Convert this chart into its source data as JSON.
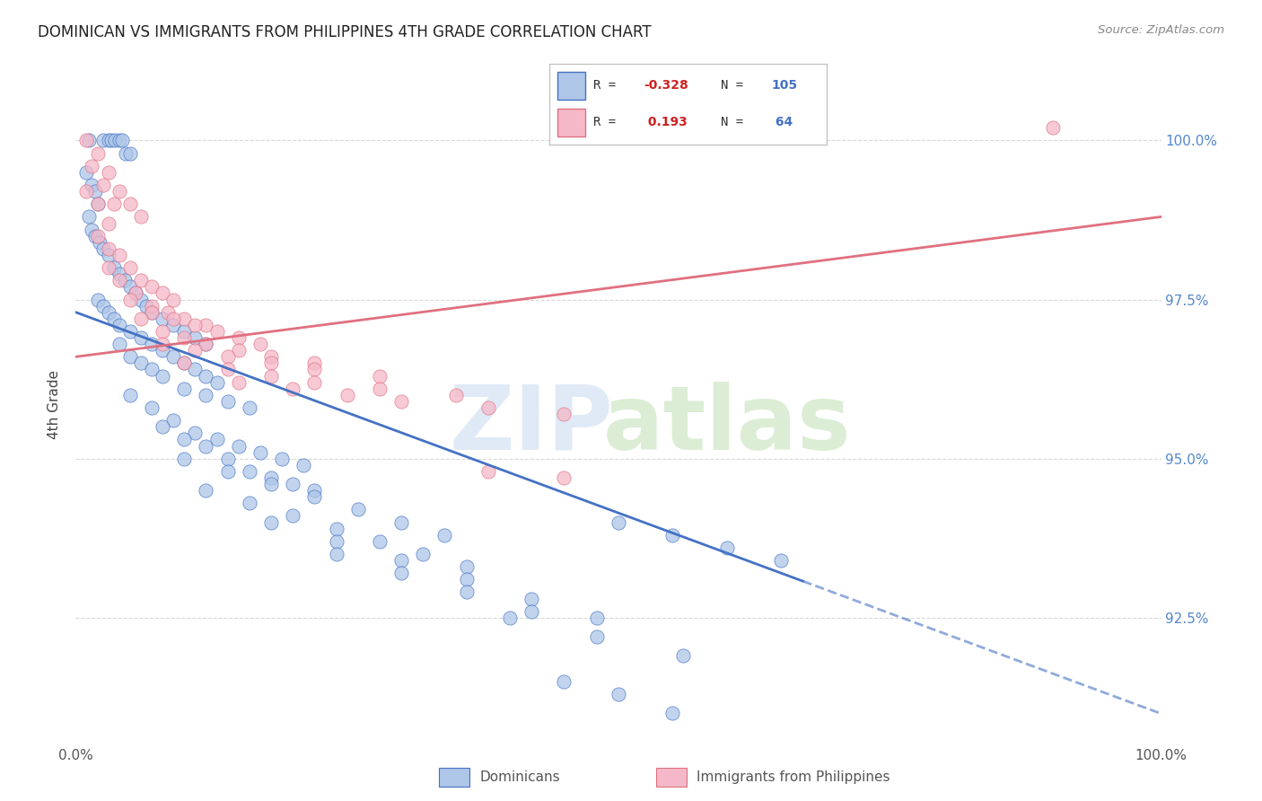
{
  "title": "DOMINICAN VS IMMIGRANTS FROM PHILIPPINES 4TH GRADE CORRELATION CHART",
  "source": "Source: ZipAtlas.com",
  "ylabel": "4th Grade",
  "ylabel_ticks": [
    "92.5%",
    "95.0%",
    "97.5%",
    "100.0%"
  ],
  "ylabel_tick_vals": [
    92.5,
    95.0,
    97.5,
    100.0
  ],
  "xlim": [
    0.0,
    100.0
  ],
  "ylim": [
    90.5,
    101.2
  ],
  "legend_blue_r": "-0.328",
  "legend_blue_n": "105",
  "legend_pink_r": "0.193",
  "legend_pink_n": "64",
  "blue_color": "#aec6e8",
  "pink_color": "#f5b8c8",
  "blue_line_color": "#4472c4",
  "pink_line_color": "#e07080",
  "blue_points": [
    [
      1.2,
      100.0
    ],
    [
      2.5,
      100.0
    ],
    [
      3.0,
      100.0
    ],
    [
      3.3,
      100.0
    ],
    [
      3.6,
      100.0
    ],
    [
      4.0,
      100.0
    ],
    [
      4.3,
      100.0
    ],
    [
      4.6,
      99.8
    ],
    [
      5.0,
      99.8
    ],
    [
      1.0,
      99.5
    ],
    [
      1.5,
      99.3
    ],
    [
      1.8,
      99.2
    ],
    [
      2.0,
      99.0
    ],
    [
      1.2,
      98.8
    ],
    [
      1.5,
      98.6
    ],
    [
      1.8,
      98.5
    ],
    [
      2.2,
      98.4
    ],
    [
      2.5,
      98.3
    ],
    [
      3.0,
      98.2
    ],
    [
      3.5,
      98.0
    ],
    [
      4.0,
      97.9
    ],
    [
      4.5,
      97.8
    ],
    [
      5.0,
      97.7
    ],
    [
      5.5,
      97.6
    ],
    [
      6.0,
      97.5
    ],
    [
      6.5,
      97.4
    ],
    [
      7.0,
      97.3
    ],
    [
      8.0,
      97.2
    ],
    [
      9.0,
      97.1
    ],
    [
      10.0,
      97.0
    ],
    [
      11.0,
      96.9
    ],
    [
      12.0,
      96.8
    ],
    [
      2.0,
      97.5
    ],
    [
      2.5,
      97.4
    ],
    [
      3.0,
      97.3
    ],
    [
      3.5,
      97.2
    ],
    [
      4.0,
      97.1
    ],
    [
      5.0,
      97.0
    ],
    [
      6.0,
      96.9
    ],
    [
      7.0,
      96.8
    ],
    [
      8.0,
      96.7
    ],
    [
      9.0,
      96.6
    ],
    [
      10.0,
      96.5
    ],
    [
      11.0,
      96.4
    ],
    [
      12.0,
      96.3
    ],
    [
      13.0,
      96.2
    ],
    [
      4.0,
      96.8
    ],
    [
      5.0,
      96.6
    ],
    [
      6.0,
      96.5
    ],
    [
      7.0,
      96.4
    ],
    [
      8.0,
      96.3
    ],
    [
      10.0,
      96.1
    ],
    [
      12.0,
      96.0
    ],
    [
      14.0,
      95.9
    ],
    [
      16.0,
      95.8
    ],
    [
      5.0,
      96.0
    ],
    [
      7.0,
      95.8
    ],
    [
      9.0,
      95.6
    ],
    [
      11.0,
      95.4
    ],
    [
      13.0,
      95.3
    ],
    [
      15.0,
      95.2
    ],
    [
      17.0,
      95.1
    ],
    [
      19.0,
      95.0
    ],
    [
      21.0,
      94.9
    ],
    [
      8.0,
      95.5
    ],
    [
      10.0,
      95.3
    ],
    [
      12.0,
      95.2
    ],
    [
      14.0,
      95.0
    ],
    [
      16.0,
      94.8
    ],
    [
      18.0,
      94.7
    ],
    [
      20.0,
      94.6
    ],
    [
      22.0,
      94.5
    ],
    [
      10.0,
      95.0
    ],
    [
      14.0,
      94.8
    ],
    [
      18.0,
      94.6
    ],
    [
      22.0,
      94.4
    ],
    [
      26.0,
      94.2
    ],
    [
      30.0,
      94.0
    ],
    [
      34.0,
      93.8
    ],
    [
      12.0,
      94.5
    ],
    [
      16.0,
      94.3
    ],
    [
      20.0,
      94.1
    ],
    [
      24.0,
      93.9
    ],
    [
      28.0,
      93.7
    ],
    [
      32.0,
      93.5
    ],
    [
      36.0,
      93.3
    ],
    [
      18.0,
      94.0
    ],
    [
      24.0,
      93.7
    ],
    [
      30.0,
      93.4
    ],
    [
      36.0,
      93.1
    ],
    [
      42.0,
      92.8
    ],
    [
      48.0,
      92.5
    ],
    [
      24.0,
      93.5
    ],
    [
      30.0,
      93.2
    ],
    [
      36.0,
      92.9
    ],
    [
      42.0,
      92.6
    ],
    [
      50.0,
      94.0
    ],
    [
      55.0,
      93.8
    ],
    [
      60.0,
      93.6
    ],
    [
      65.0,
      93.4
    ],
    [
      45.0,
      91.5
    ],
    [
      50.0,
      91.3
    ],
    [
      55.0,
      91.0
    ],
    [
      40.0,
      92.5
    ],
    [
      48.0,
      92.2
    ],
    [
      56.0,
      91.9
    ]
  ],
  "pink_points": [
    [
      1.0,
      100.0
    ],
    [
      2.0,
      99.8
    ],
    [
      3.0,
      99.5
    ],
    [
      1.5,
      99.6
    ],
    [
      2.5,
      99.3
    ],
    [
      3.5,
      99.0
    ],
    [
      1.0,
      99.2
    ],
    [
      2.0,
      99.0
    ],
    [
      3.0,
      98.7
    ],
    [
      4.0,
      99.2
    ],
    [
      5.0,
      99.0
    ],
    [
      6.0,
      98.8
    ],
    [
      2.0,
      98.5
    ],
    [
      3.0,
      98.3
    ],
    [
      4.0,
      98.2
    ],
    [
      5.0,
      98.0
    ],
    [
      6.0,
      97.8
    ],
    [
      7.0,
      97.7
    ],
    [
      8.0,
      97.6
    ],
    [
      9.0,
      97.5
    ],
    [
      3.0,
      98.0
    ],
    [
      4.0,
      97.8
    ],
    [
      5.5,
      97.6
    ],
    [
      7.0,
      97.4
    ],
    [
      8.5,
      97.3
    ],
    [
      10.0,
      97.2
    ],
    [
      12.0,
      97.1
    ],
    [
      5.0,
      97.5
    ],
    [
      7.0,
      97.3
    ],
    [
      9.0,
      97.2
    ],
    [
      11.0,
      97.1
    ],
    [
      13.0,
      97.0
    ],
    [
      15.0,
      96.9
    ],
    [
      17.0,
      96.8
    ],
    [
      6.0,
      97.2
    ],
    [
      8.0,
      97.0
    ],
    [
      10.0,
      96.9
    ],
    [
      12.0,
      96.8
    ],
    [
      15.0,
      96.7
    ],
    [
      18.0,
      96.6
    ],
    [
      22.0,
      96.5
    ],
    [
      8.0,
      96.8
    ],
    [
      11.0,
      96.7
    ],
    [
      14.0,
      96.6
    ],
    [
      18.0,
      96.5
    ],
    [
      22.0,
      96.4
    ],
    [
      28.0,
      96.3
    ],
    [
      10.0,
      96.5
    ],
    [
      14.0,
      96.4
    ],
    [
      18.0,
      96.3
    ],
    [
      22.0,
      96.2
    ],
    [
      28.0,
      96.1
    ],
    [
      35.0,
      96.0
    ],
    [
      15.0,
      96.2
    ],
    [
      20.0,
      96.1
    ],
    [
      25.0,
      96.0
    ],
    [
      30.0,
      95.9
    ],
    [
      38.0,
      95.8
    ],
    [
      45.0,
      95.7
    ],
    [
      38.0,
      94.8
    ],
    [
      45.0,
      94.7
    ],
    [
      90.0,
      100.2
    ]
  ],
  "background_color": "#ffffff",
  "grid_color": "#d8d8d8"
}
